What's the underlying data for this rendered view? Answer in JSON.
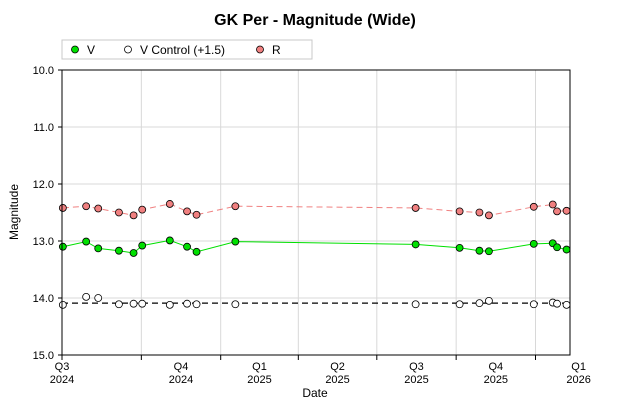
{
  "chart_data": {
    "type": "scatter",
    "title": "GK Per - Magnitude (Wide)",
    "xlabel": "Date",
    "ylabel": "Magnitude",
    "ylim": [
      15.0,
      10.0
    ],
    "y_inverted": true,
    "y_ticks": [
      "10.0",
      "11.0",
      "12.0",
      "13.0",
      "14.0",
      "15.0"
    ],
    "x_range": [
      "2024-07-01",
      "2026-02-10"
    ],
    "x_ticks": [
      {
        "date": "2024-07-01",
        "q": "Q3",
        "y": "2024"
      },
      {
        "date": "2024-10-01",
        "q": "Q4",
        "y": "2024"
      },
      {
        "date": "2025-01-01",
        "q": "Q1",
        "y": "2025"
      },
      {
        "date": "2025-04-01",
        "q": "Q2",
        "y": "2025"
      },
      {
        "date": "2025-07-01",
        "q": "Q3",
        "y": "2025"
      },
      {
        "date": "2025-10-01",
        "q": "Q4",
        "y": "2025"
      },
      {
        "date": "2026-01-01",
        "q": "Q1",
        "y": "2026"
      }
    ],
    "grid": true,
    "legend_position": "top",
    "series": [
      {
        "name": "V",
        "color": "#00e000",
        "line": "solid",
        "line_color": "#00e000",
        "points": [
          {
            "x": "2024-07-02",
            "y": 13.1
          },
          {
            "x": "2024-07-29",
            "y": 13.01
          },
          {
            "x": "2024-08-12",
            "y": 13.13
          },
          {
            "x": "2024-09-05",
            "y": 13.17
          },
          {
            "x": "2024-09-22",
            "y": 13.21
          },
          {
            "x": "2024-10-02",
            "y": 13.08
          },
          {
            "x": "2024-11-03",
            "y": 12.99
          },
          {
            "x": "2024-11-23",
            "y": 13.1
          },
          {
            "x": "2024-12-04",
            "y": 13.19
          },
          {
            "x": "2025-01-18",
            "y": 13.01
          },
          {
            "x": "2025-08-15",
            "y": 13.06
          },
          {
            "x": "2025-10-05",
            "y": 13.12
          },
          {
            "x": "2025-10-28",
            "y": 13.17
          },
          {
            "x": "2025-11-08",
            "y": 13.18
          },
          {
            "x": "2025-12-30",
            "y": 13.05
          },
          {
            "x": "2026-01-21",
            "y": 13.04
          },
          {
            "x": "2026-01-26",
            "y": 13.11
          },
          {
            "x": "2026-02-06",
            "y": 13.15
          }
        ]
      },
      {
        "name": "V Control (+1.5)",
        "color": "#ffffff",
        "line": "dashed",
        "line_color": "#000000",
        "points": [
          {
            "x": "2024-07-02",
            "y": 14.12
          },
          {
            "x": "2024-07-29",
            "y": 13.98
          },
          {
            "x": "2024-08-12",
            "y": 14.0
          },
          {
            "x": "2024-09-05",
            "y": 14.11
          },
          {
            "x": "2024-09-22",
            "y": 14.1
          },
          {
            "x": "2024-10-02",
            "y": 14.1
          },
          {
            "x": "2024-11-03",
            "y": 14.12
          },
          {
            "x": "2024-11-23",
            "y": 14.1
          },
          {
            "x": "2024-12-04",
            "y": 14.11
          },
          {
            "x": "2025-01-18",
            "y": 14.11
          },
          {
            "x": "2025-08-15",
            "y": 14.11
          },
          {
            "x": "2025-10-05",
            "y": 14.11
          },
          {
            "x": "2025-10-28",
            "y": 14.09
          },
          {
            "x": "2025-11-08",
            "y": 14.05
          },
          {
            "x": "2025-12-30",
            "y": 14.11
          },
          {
            "x": "2026-01-21",
            "y": 14.08
          },
          {
            "x": "2026-01-26",
            "y": 14.1
          },
          {
            "x": "2026-02-06",
            "y": 14.12
          }
        ]
      },
      {
        "name": "R",
        "color": "#f08080",
        "line": "dashed",
        "line_color": "#f08080",
        "points": [
          {
            "x": "2024-07-02",
            "y": 12.42
          },
          {
            "x": "2024-07-29",
            "y": 12.39
          },
          {
            "x": "2024-08-12",
            "y": 12.43
          },
          {
            "x": "2024-09-05",
            "y": 12.5
          },
          {
            "x": "2024-09-22",
            "y": 12.55
          },
          {
            "x": "2024-10-02",
            "y": 12.45
          },
          {
            "x": "2024-11-03",
            "y": 12.35
          },
          {
            "x": "2024-11-23",
            "y": 12.48
          },
          {
            "x": "2024-12-04",
            "y": 12.54
          },
          {
            "x": "2025-01-18",
            "y": 12.39
          },
          {
            "x": "2025-08-15",
            "y": 12.42
          },
          {
            "x": "2025-10-05",
            "y": 12.48
          },
          {
            "x": "2025-10-28",
            "y": 12.5
          },
          {
            "x": "2025-11-08",
            "y": 12.55
          },
          {
            "x": "2025-12-30",
            "y": 12.4
          },
          {
            "x": "2026-01-21",
            "y": 12.36
          },
          {
            "x": "2026-01-26",
            "y": 12.48
          },
          {
            "x": "2026-02-06",
            "y": 12.47
          }
        ]
      }
    ]
  }
}
